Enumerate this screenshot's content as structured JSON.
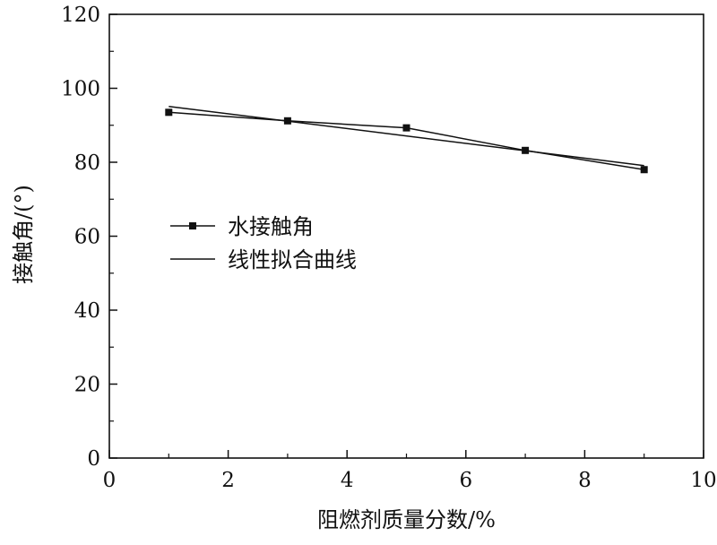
{
  "chart_data": {
    "type": "line",
    "xlabel": "阻燃剂质量分数/%",
    "ylabel": "接触角/(°)",
    "xlim": [
      0,
      10
    ],
    "ylim": [
      0,
      120
    ],
    "x_ticks": [
      0,
      2,
      4,
      6,
      8,
      10
    ],
    "y_ticks": [
      0,
      20,
      40,
      60,
      80,
      100,
      120
    ],
    "grid": false,
    "legend_position": "center-left",
    "series": [
      {
        "name": "水接触角",
        "style": "line-with-square-markers",
        "color": "#111111",
        "x": [
          1,
          3,
          5,
          7,
          9
        ],
        "y": [
          93.5,
          91.2,
          89.3,
          83.2,
          78
        ]
      },
      {
        "name": "线性拟合曲线",
        "style": "line",
        "color": "#111111",
        "x": [
          1,
          9
        ],
        "y": [
          95.1,
          79.1
        ]
      }
    ]
  }
}
